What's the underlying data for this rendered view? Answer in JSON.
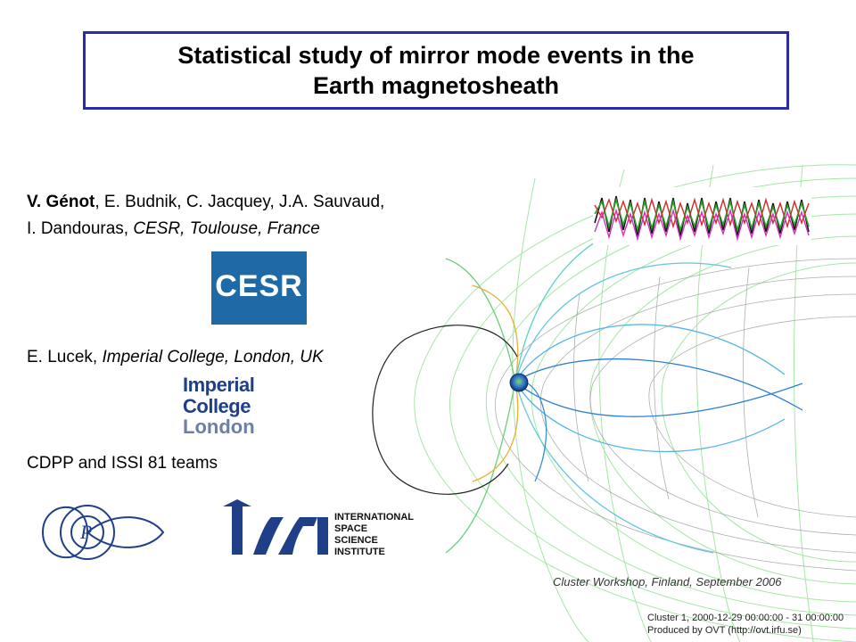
{
  "title": {
    "line1": "Statistical study of mirror mode events in the",
    "line2": "Earth magnetosheath"
  },
  "authors": {
    "name_bold": "V. Génot",
    "rest_line1": ", E. Budnik, C. Jacquey, J.A. Sauvaud,",
    "line2_a": "I. Dandouras, ",
    "line2_italic": "CESR, Toulouse, France"
  },
  "lucek": {
    "name": "E. Lucek, ",
    "affil": "Imperial College, London, UK"
  },
  "teams": "CDPP and ISSI 81 teams",
  "logos": {
    "cesr": "CESR",
    "imperial_l1": "Imperial College",
    "imperial_l2": "London",
    "issi_l1": "INTERNATIONAL",
    "issi_l2": "SPACE",
    "issi_l3": "SCIENCE",
    "issi_l4": "INSTITUTE"
  },
  "footer_note": "Cluster Workshop, Finland, September 2006",
  "credit": {
    "line1": "Cluster 1, 2000-12-29 00:00:00 - 31 00:00:00",
    "line2": "Produced by OVT (http://ovt.irfu.se)"
  },
  "colors": {
    "title_border": "#2b2ba8",
    "cesr_blue": "#1e6aa6",
    "imperial_blue": "#1f3f88"
  }
}
